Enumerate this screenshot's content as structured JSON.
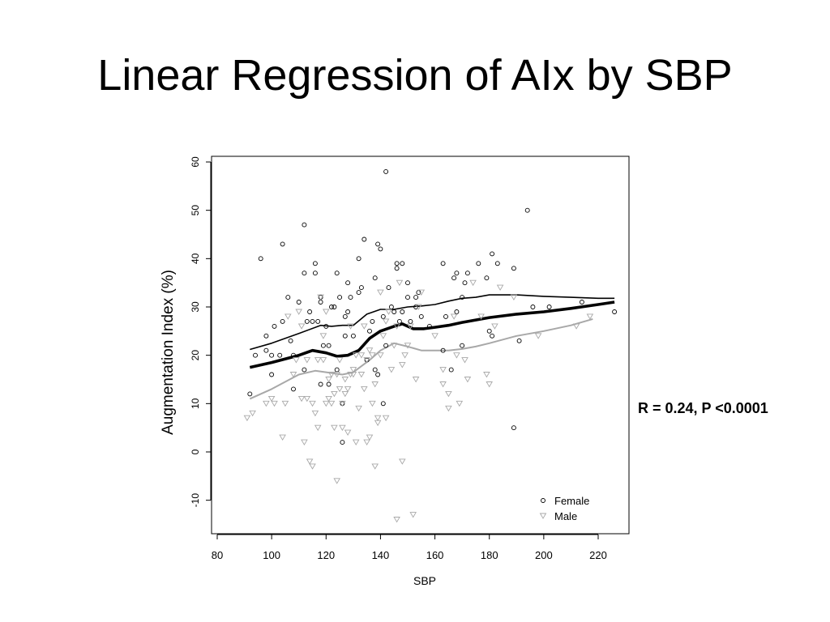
{
  "slide": {
    "title": "Linear Regression of AIx by SBP",
    "stat_label": "R = 0.24, P <0.0001"
  },
  "chart_data": {
    "type": "scatter",
    "title": "",
    "xlabel": "SBP",
    "ylabel": "Augmentation Index (%)",
    "xlim": [
      80,
      226
    ],
    "ylim": [
      -17,
      62
    ],
    "x_ticks": [
      80,
      100,
      120,
      140,
      160,
      180,
      200,
      220
    ],
    "y_ticks": [
      -10,
      0,
      10,
      20,
      30,
      40,
      50,
      60
    ],
    "grid": false,
    "legend_position": "bottom-right",
    "colors": {
      "female": "#000000",
      "male": "#a8a8a8",
      "overall_fit": "#000000"
    },
    "series": [
      {
        "name": "Female",
        "marker": "circle",
        "points": [
          [
            92,
            12
          ],
          [
            94,
            20
          ],
          [
            96,
            40
          ],
          [
            98,
            24
          ],
          [
            98,
            21
          ],
          [
            100,
            16
          ],
          [
            100,
            20
          ],
          [
            101,
            26
          ],
          [
            103,
            20
          ],
          [
            104,
            43
          ],
          [
            104,
            27
          ],
          [
            106,
            32
          ],
          [
            107,
            23
          ],
          [
            108,
            13
          ],
          [
            108,
            20
          ],
          [
            110,
            31
          ],
          [
            112,
            47
          ],
          [
            112,
            17
          ],
          [
            112,
            37
          ],
          [
            113,
            27
          ],
          [
            114,
            29
          ],
          [
            115,
            27
          ],
          [
            116,
            39
          ],
          [
            116,
            37
          ],
          [
            117,
            27
          ],
          [
            118,
            31
          ],
          [
            118,
            32
          ],
          [
            118,
            14
          ],
          [
            119,
            22
          ],
          [
            120,
            26
          ],
          [
            121,
            22
          ],
          [
            121,
            14
          ],
          [
            122,
            30
          ],
          [
            123,
            30
          ],
          [
            124,
            37
          ],
          [
            124,
            17
          ],
          [
            125,
            32
          ],
          [
            126,
            2
          ],
          [
            126,
            10
          ],
          [
            127,
            24
          ],
          [
            127,
            28
          ],
          [
            128,
            35
          ],
          [
            128,
            29
          ],
          [
            129,
            32
          ],
          [
            130,
            24
          ],
          [
            132,
            40
          ],
          [
            132,
            33
          ],
          [
            133,
            34
          ],
          [
            134,
            44
          ],
          [
            135,
            19
          ],
          [
            136,
            25
          ],
          [
            137,
            27
          ],
          [
            138,
            17
          ],
          [
            138,
            36
          ],
          [
            139,
            16
          ],
          [
            139,
            43
          ],
          [
            140,
            42
          ],
          [
            141,
            10
          ],
          [
            141,
            28
          ],
          [
            142,
            22
          ],
          [
            142,
            58
          ],
          [
            143,
            34
          ],
          [
            144,
            30
          ],
          [
            145,
            29
          ],
          [
            146,
            38
          ],
          [
            146,
            39
          ],
          [
            147,
            27
          ],
          [
            148,
            29
          ],
          [
            148,
            39
          ],
          [
            150,
            32
          ],
          [
            150,
            35
          ],
          [
            151,
            27
          ],
          [
            153,
            30
          ],
          [
            153,
            32
          ],
          [
            154,
            33
          ],
          [
            155,
            28
          ],
          [
            158,
            26
          ],
          [
            163,
            39
          ],
          [
            163,
            21
          ],
          [
            164,
            28
          ],
          [
            166,
            17
          ],
          [
            167,
            36
          ],
          [
            168,
            37
          ],
          [
            168,
            29
          ],
          [
            170,
            22
          ],
          [
            170,
            32
          ],
          [
            171,
            35
          ],
          [
            172,
            37
          ],
          [
            176,
            39
          ],
          [
            179,
            36
          ],
          [
            180,
            25
          ],
          [
            181,
            24
          ],
          [
            181,
            41
          ],
          [
            183,
            39
          ],
          [
            189,
            38
          ],
          [
            189,
            5
          ],
          [
            191,
            23
          ],
          [
            194,
            50
          ],
          [
            196,
            30
          ],
          [
            202,
            30
          ],
          [
            214,
            31
          ],
          [
            226,
            29
          ]
        ]
      },
      {
        "name": "Male",
        "marker": "triangle-down",
        "points": [
          [
            91,
            7
          ],
          [
            93,
            8
          ],
          [
            98,
            10
          ],
          [
            100,
            11
          ],
          [
            101,
            10
          ],
          [
            104,
            3
          ],
          [
            105,
            10
          ],
          [
            106,
            28
          ],
          [
            108,
            16
          ],
          [
            109,
            19
          ],
          [
            110,
            29
          ],
          [
            111,
            11
          ],
          [
            111,
            26
          ],
          [
            112,
            2
          ],
          [
            113,
            11
          ],
          [
            113,
            19
          ],
          [
            114,
            -2
          ],
          [
            115,
            10
          ],
          [
            115,
            -3
          ],
          [
            116,
            8
          ],
          [
            117,
            5
          ],
          [
            117,
            19
          ],
          [
            118,
            32
          ],
          [
            119,
            24
          ],
          [
            119,
            19
          ],
          [
            120,
            10
          ],
          [
            120,
            29
          ],
          [
            121,
            11
          ],
          [
            121,
            15
          ],
          [
            122,
            10
          ],
          [
            122,
            16
          ],
          [
            123,
            12
          ],
          [
            123,
            5
          ],
          [
            124,
            -6
          ],
          [
            124,
            16
          ],
          [
            125,
            19
          ],
          [
            125,
            13
          ],
          [
            126,
            10
          ],
          [
            126,
            5
          ],
          [
            127,
            15
          ],
          [
            127,
            12
          ],
          [
            128,
            4
          ],
          [
            128,
            13
          ],
          [
            129,
            16
          ],
          [
            129,
            26
          ],
          [
            130,
            16
          ],
          [
            130,
            17
          ],
          [
            131,
            2
          ],
          [
            131,
            20
          ],
          [
            132,
            9
          ],
          [
            133,
            16
          ],
          [
            133,
            20
          ],
          [
            134,
            26
          ],
          [
            134,
            13
          ],
          [
            135,
            19
          ],
          [
            135,
            2
          ],
          [
            136,
            3
          ],
          [
            136,
            21
          ],
          [
            137,
            10
          ],
          [
            137,
            20
          ],
          [
            138,
            -3
          ],
          [
            138,
            14
          ],
          [
            139,
            6
          ],
          [
            139,
            7
          ],
          [
            140,
            20
          ],
          [
            140,
            33
          ],
          [
            141,
            24
          ],
          [
            142,
            7
          ],
          [
            142,
            27
          ],
          [
            143,
            29
          ],
          [
            144,
            17
          ],
          [
            145,
            22
          ],
          [
            146,
            -14
          ],
          [
            146,
            26
          ],
          [
            147,
            35
          ],
          [
            148,
            -2
          ],
          [
            148,
            18
          ],
          [
            149,
            20
          ],
          [
            150,
            22
          ],
          [
            151,
            26
          ],
          [
            152,
            -13
          ],
          [
            153,
            15
          ],
          [
            154,
            30
          ],
          [
            155,
            33
          ],
          [
            160,
            24
          ],
          [
            163,
            17
          ],
          [
            163,
            14
          ],
          [
            165,
            12
          ],
          [
            165,
            9
          ],
          [
            167,
            28
          ],
          [
            168,
            20
          ],
          [
            169,
            10
          ],
          [
            171,
            19
          ],
          [
            172,
            15
          ],
          [
            174,
            35
          ],
          [
            177,
            28
          ],
          [
            179,
            16
          ],
          [
            180,
            14
          ],
          [
            182,
            26
          ],
          [
            184,
            34
          ],
          [
            189,
            32
          ],
          [
            198,
            24
          ],
          [
            212,
            26
          ],
          [
            217,
            28
          ]
        ]
      }
    ],
    "smooth_lines": [
      {
        "group": "Female",
        "points": [
          [
            92,
            21.2
          ],
          [
            100,
            22.5
          ],
          [
            110,
            24.5
          ],
          [
            118,
            26.2
          ],
          [
            122,
            26
          ],
          [
            126,
            26.2
          ],
          [
            130,
            26.2
          ],
          [
            135,
            28.5
          ],
          [
            140,
            29.5
          ],
          [
            145,
            29.5
          ],
          [
            150,
            30
          ],
          [
            155,
            30.2
          ],
          [
            160,
            30.5
          ],
          [
            165,
            31.2
          ],
          [
            170,
            31.8
          ],
          [
            175,
            32
          ],
          [
            180,
            32.5
          ],
          [
            185,
            32.5
          ],
          [
            190,
            32.5
          ],
          [
            200,
            32.2
          ],
          [
            210,
            32
          ],
          [
            220,
            31.8
          ],
          [
            226,
            31.8
          ]
        ]
      },
      {
        "group": "Overall",
        "points": [
          [
            92,
            17.5
          ],
          [
            100,
            18.5
          ],
          [
            110,
            20
          ],
          [
            115,
            21
          ],
          [
            120,
            20.5
          ],
          [
            124,
            19.8
          ],
          [
            128,
            20
          ],
          [
            132,
            21
          ],
          [
            136,
            23.5
          ],
          [
            140,
            25
          ],
          [
            145,
            26
          ],
          [
            148,
            26.5
          ],
          [
            152,
            25.5
          ],
          [
            156,
            25.5
          ],
          [
            160,
            25.8
          ],
          [
            165,
            26.2
          ],
          [
            170,
            26.8
          ],
          [
            180,
            27.8
          ],
          [
            190,
            28.5
          ],
          [
            200,
            29
          ],
          [
            210,
            29.7
          ],
          [
            220,
            30.5
          ],
          [
            226,
            31
          ]
        ]
      },
      {
        "group": "Male",
        "points": [
          [
            92,
            11
          ],
          [
            100,
            13
          ],
          [
            110,
            16
          ],
          [
            116,
            16.8
          ],
          [
            120,
            16.5
          ],
          [
            126,
            16
          ],
          [
            130,
            16.5
          ],
          [
            136,
            19
          ],
          [
            140,
            21
          ],
          [
            145,
            22.5
          ],
          [
            150,
            21.8
          ],
          [
            155,
            21
          ],
          [
            160,
            21
          ],
          [
            165,
            21
          ],
          [
            170,
            21.3
          ],
          [
            175,
            21.8
          ],
          [
            180,
            22.5
          ],
          [
            190,
            24
          ],
          [
            200,
            25
          ],
          [
            210,
            26.2
          ],
          [
            218,
            27.5
          ]
        ]
      }
    ]
  }
}
